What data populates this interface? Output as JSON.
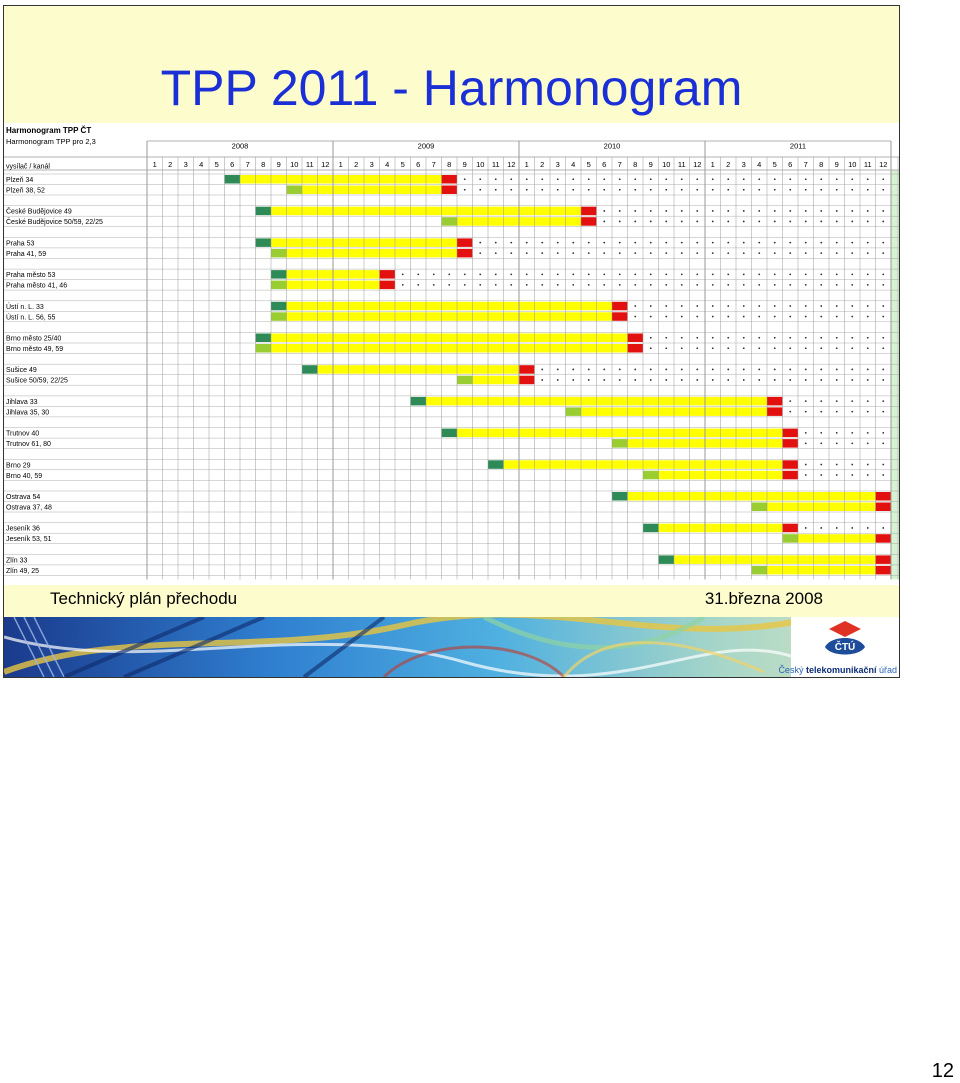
{
  "slide": {
    "title": "TPP 2011 - Harmonogram",
    "footer_left": "Technický plán přechodu",
    "footer_right": "31.března 2008",
    "page_number": "12",
    "logo_abbr": "ČTÚ",
    "logo_text_pre": "Český ",
    "logo_text_bold": "telekomunikační",
    "logo_text_post": " úřad"
  },
  "sheet": {
    "heading1": "Harmonogram TPP ČT",
    "heading2": "Harmonogram TPP pro 2,3",
    "col_header": "vysílač / kanál",
    "years": [
      "2008",
      "2009",
      "2010",
      "2011"
    ],
    "months": [
      "1",
      "2",
      "3",
      "4",
      "5",
      "6",
      "7",
      "8",
      "9",
      "10",
      "11",
      "12"
    ],
    "groups": [
      {
        "rows": [
          {
            "label": "Plzeň    34",
            "start": 5,
            "end": 19,
            "type": "primary"
          },
          {
            "label": "Plzeň    38, 52",
            "start": 9,
            "end": 19,
            "type": "secondary"
          }
        ]
      },
      {
        "rows": [
          {
            "label": "České Budějovice    49",
            "start": 7,
            "end": 28,
            "type": "primary"
          },
          {
            "label": "České Budějovice    50/59, 22/25",
            "start": 19,
            "end": 28,
            "type": "secondary"
          }
        ]
      },
      {
        "rows": [
          {
            "label": "Praha    53",
            "start": 7,
            "end": 20,
            "type": "primary"
          },
          {
            "label": "Praha    41, 59",
            "start": 8,
            "end": 20,
            "type": "secondary"
          }
        ]
      },
      {
        "rows": [
          {
            "label": "Praha město    53",
            "start": 8,
            "end": 15,
            "type": "primary"
          },
          {
            "label": "Praha město    41, 46",
            "start": 8,
            "end": 15,
            "type": "secondary"
          }
        ]
      },
      {
        "rows": [
          {
            "label": "Ústí n. L.  33",
            "start": 8,
            "end": 30,
            "type": "primary"
          },
          {
            "label": "Ústí n. L.  56, 55",
            "start": 8,
            "end": 30,
            "type": "secondary"
          }
        ]
      },
      {
        "rows": [
          {
            "label": "Brno město 25/40",
            "start": 7,
            "end": 31,
            "type": "primary"
          },
          {
            "label": "Brno město 49, 59",
            "start": 7,
            "end": 31,
            "type": "secondary"
          }
        ]
      },
      {
        "rows": [
          {
            "label": "Sušice    49",
            "start": 10,
            "end": 24,
            "type": "primary"
          },
          {
            "label": "Sušice    50/59, 22/25",
            "start": 20,
            "end": 24,
            "type": "secondary"
          }
        ]
      },
      {
        "rows": [
          {
            "label": "Jihlava    33",
            "start": 17,
            "end": 40,
            "type": "primary"
          },
          {
            "label": "Jihlava    35, 30",
            "start": 27,
            "end": 40,
            "type": "secondary"
          }
        ]
      },
      {
        "rows": [
          {
            "label": "Trutnov    40",
            "start": 19,
            "end": 41,
            "type": "primary"
          },
          {
            "label": "Trutnov    61, 80",
            "start": 30,
            "end": 41,
            "type": "secondary"
          }
        ]
      },
      {
        "rows": [
          {
            "label": "Brno    29",
            "start": 22,
            "end": 41,
            "type": "primary"
          },
          {
            "label": "Brno    40, 59",
            "start": 32,
            "end": 41,
            "type": "secondary"
          }
        ]
      },
      {
        "rows": [
          {
            "label": "Ostrava    54",
            "start": 30,
            "end": 47,
            "type": "primary"
          },
          {
            "label": "Ostrava    37, 48",
            "start": 39,
            "end": 47,
            "type": "secondary"
          }
        ]
      },
      {
        "rows": [
          {
            "label": "Jeseník    36",
            "start": 32,
            "end": 41,
            "type": "primary"
          },
          {
            "label": "Jeseník    53, 51",
            "start": 41,
            "end": 47,
            "type": "secondary"
          }
        ]
      },
      {
        "rows": [
          {
            "label": "Zlín    33",
            "start": 33,
            "end": 47,
            "type": "primary"
          },
          {
            "label": "Zlín    49, 25",
            "start": 39,
            "end": 47,
            "type": "secondary"
          }
        ]
      }
    ]
  },
  "colors": {
    "primary_start": "#2e8b57",
    "secondary_start": "#9acd32",
    "bar": "#ffff00",
    "switch_off": "#e31010",
    "last_column": "#d6f2d2",
    "grid": "#9a9a9a",
    "title": "#1a2fd6"
  }
}
